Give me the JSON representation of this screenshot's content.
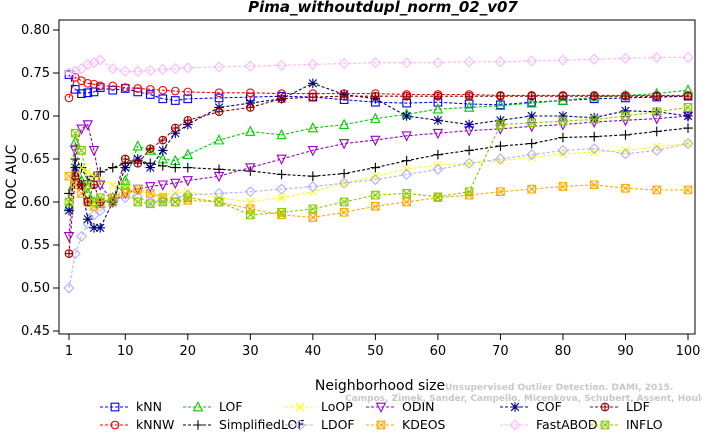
{
  "chart_data": {
    "type": "line",
    "title": "Pima_withoutdupl_norm_02_v07",
    "xlabel": "Neighborhood size",
    "ylabel": "ROC AUC",
    "xlim": [
      1,
      100
    ],
    "ylim": [
      0.45,
      0.8
    ],
    "xticks": [
      1,
      10,
      20,
      30,
      40,
      50,
      60,
      70,
      80,
      90,
      100
    ],
    "xtick_labels": [
      "1",
      "10",
      "20",
      "30",
      "40",
      "50",
      "60",
      "70",
      "80",
      "90",
      "100"
    ],
    "yticks": [
      0.45,
      0.5,
      0.55,
      0.6,
      0.65,
      0.7,
      0.75,
      0.8
    ],
    "ytick_labels": [
      "0.45",
      "0.50",
      "0.55",
      "0.60",
      "0.65",
      "0.70",
      "0.75",
      "0.80"
    ],
    "grid": false,
    "legend_position": "bottom",
    "watermark": {
      "line1": "Unsupervised Outlier Detection. DAMI, 2015.",
      "line2": "Campos, Zimek, Sander, Campello, Micenkova, Schubert, Assent, Houle"
    },
    "series": [
      {
        "name": "kNN",
        "color": "#0000ff",
        "marker": "square",
        "x": [
          1,
          2,
          3,
          4,
          5,
          6,
          8,
          10,
          12,
          14,
          16,
          18,
          20,
          25,
          30,
          35,
          40,
          45,
          50,
          55,
          60,
          65,
          70,
          75,
          80,
          85,
          90,
          95,
          100
        ],
        "values": [
          0.748,
          0.731,
          0.726,
          0.727,
          0.728,
          0.733,
          0.73,
          0.732,
          0.728,
          0.725,
          0.72,
          0.718,
          0.72,
          0.721,
          0.722,
          0.723,
          0.722,
          0.719,
          0.716,
          0.715,
          0.716,
          0.714,
          0.713,
          0.716,
          0.718,
          0.72,
          0.721,
          0.722,
          0.723
        ]
      },
      {
        "name": "kNNW",
        "color": "#ff0000",
        "marker": "circle",
        "x": [
          1,
          2,
          3,
          4,
          5,
          6,
          8,
          10,
          12,
          14,
          16,
          18,
          20,
          25,
          30,
          35,
          40,
          45,
          50,
          55,
          60,
          65,
          70,
          75,
          80,
          85,
          90,
          95,
          100
        ],
        "values": [
          0.721,
          0.745,
          0.741,
          0.738,
          0.737,
          0.735,
          0.735,
          0.733,
          0.732,
          0.731,
          0.73,
          0.729,
          0.728,
          0.727,
          0.727,
          0.726,
          0.726,
          0.726,
          0.726,
          0.725,
          0.725,
          0.725,
          0.724,
          0.724,
          0.724,
          0.724,
          0.724,
          0.724,
          0.724
        ]
      },
      {
        "name": "LOF",
        "color": "#00cc00",
        "marker": "triangle",
        "x": [
          1,
          2,
          3,
          4,
          5,
          6,
          8,
          10,
          12,
          14,
          16,
          18,
          20,
          25,
          30,
          35,
          40,
          45,
          50,
          55,
          60,
          65,
          70,
          75,
          80,
          85,
          90,
          95,
          100
        ],
        "values": [
          0.595,
          0.67,
          0.625,
          0.61,
          0.6,
          0.598,
          0.605,
          0.625,
          0.665,
          0.66,
          0.65,
          0.648,
          0.655,
          0.672,
          0.682,
          0.678,
          0.686,
          0.69,
          0.697,
          0.702,
          0.708,
          0.71,
          0.712,
          0.715,
          0.718,
          0.722,
          0.724,
          0.726,
          0.73
        ]
      },
      {
        "name": "SimplifiedLOF",
        "color": "#000000",
        "marker": "plus",
        "x": [
          1,
          2,
          3,
          4,
          5,
          6,
          8,
          10,
          12,
          14,
          16,
          18,
          20,
          25,
          30,
          35,
          40,
          45,
          50,
          55,
          60,
          65,
          70,
          75,
          80,
          85,
          90,
          95,
          100
        ],
        "values": [
          0.61,
          0.65,
          0.64,
          0.625,
          0.63,
          0.635,
          0.64,
          0.645,
          0.648,
          0.645,
          0.642,
          0.64,
          0.64,
          0.638,
          0.636,
          0.632,
          0.63,
          0.633,
          0.64,
          0.648,
          0.655,
          0.66,
          0.665,
          0.668,
          0.675,
          0.676,
          0.678,
          0.682,
          0.686
        ]
      },
      {
        "name": "LoOP",
        "color": "#ffff00",
        "marker": "cross",
        "x": [
          1,
          2,
          3,
          4,
          5,
          6,
          8,
          10,
          12,
          14,
          16,
          18,
          20,
          25,
          30,
          35,
          40,
          45,
          50,
          55,
          60,
          65,
          70,
          75,
          80,
          85,
          90,
          95,
          100
        ],
        "values": [
          0.6,
          0.63,
          0.64,
          0.635,
          0.63,
          0.625,
          0.62,
          0.615,
          0.612,
          0.61,
          0.608,
          0.61,
          0.612,
          0.605,
          0.6,
          0.605,
          0.612,
          0.622,
          0.63,
          0.638,
          0.643,
          0.645,
          0.648,
          0.652,
          0.656,
          0.658,
          0.66,
          0.664,
          0.668
        ]
      },
      {
        "name": "LDOF",
        "color": "#b0b0ff",
        "marker": "diamond",
        "x": [
          1,
          2,
          3,
          4,
          5,
          6,
          8,
          10,
          12,
          14,
          16,
          18,
          20,
          25,
          30,
          35,
          40,
          45,
          50,
          55,
          60,
          65,
          70,
          75,
          80,
          85,
          90,
          95,
          100
        ],
        "values": [
          0.5,
          0.54,
          0.56,
          0.575,
          0.585,
          0.59,
          0.6,
          0.605,
          0.605,
          0.6,
          0.602,
          0.605,
          0.608,
          0.61,
          0.612,
          0.615,
          0.618,
          0.622,
          0.626,
          0.632,
          0.638,
          0.645,
          0.65,
          0.655,
          0.66,
          0.662,
          0.656,
          0.66,
          0.668
        ]
      },
      {
        "name": "ODIN",
        "color": "#9900cc",
        "marker": "triangle-down",
        "x": [
          1,
          2,
          3,
          4,
          5,
          6,
          8,
          10,
          12,
          14,
          16,
          18,
          20,
          25,
          30,
          35,
          40,
          45,
          50,
          55,
          60,
          65,
          70,
          75,
          80,
          85,
          90,
          95,
          100
        ],
        "values": [
          0.56,
          0.66,
          0.685,
          0.69,
          0.66,
          0.62,
          0.6,
          0.61,
          0.615,
          0.618,
          0.62,
          0.622,
          0.625,
          0.63,
          0.64,
          0.65,
          0.66,
          0.668,
          0.672,
          0.677,
          0.68,
          0.683,
          0.685,
          0.688,
          0.69,
          0.693,
          0.695,
          0.697,
          0.7
        ]
      },
      {
        "name": "KDEOS",
        "color": "#ffaa00",
        "marker": "square-x",
        "x": [
          1,
          2,
          3,
          4,
          5,
          6,
          8,
          10,
          12,
          14,
          16,
          18,
          20,
          25,
          30,
          35,
          40,
          45,
          50,
          55,
          60,
          65,
          70,
          75,
          80,
          85,
          90,
          95,
          100
        ],
        "values": [
          0.63,
          0.62,
          0.61,
          0.6,
          0.595,
          0.6,
          0.605,
          0.61,
          0.615,
          0.61,
          0.605,
          0.6,
          0.602,
          0.6,
          0.592,
          0.585,
          0.582,
          0.588,
          0.595,
          0.6,
          0.605,
          0.608,
          0.612,
          0.615,
          0.618,
          0.62,
          0.616,
          0.614,
          0.614
        ]
      },
      {
        "name": "COF",
        "color": "#000080",
        "marker": "star",
        "x": [
          1,
          2,
          3,
          4,
          5,
          6,
          8,
          10,
          12,
          14,
          16,
          18,
          20,
          25,
          30,
          35,
          40,
          45,
          50,
          55,
          60,
          65,
          70,
          75,
          80,
          85,
          90,
          95,
          100
        ],
        "values": [
          0.59,
          0.64,
          0.62,
          0.58,
          0.57,
          0.57,
          0.6,
          0.64,
          0.65,
          0.64,
          0.66,
          0.68,
          0.69,
          0.71,
          0.715,
          0.72,
          0.738,
          0.725,
          0.72,
          0.7,
          0.695,
          0.69,
          0.695,
          0.7,
          0.7,
          0.698,
          0.706,
          0.705,
          0.7
        ]
      },
      {
        "name": "FastABOD",
        "color": "#ffb6ff",
        "marker": "diamond",
        "x": [
          1,
          2,
          3,
          4,
          5,
          6,
          8,
          10,
          12,
          14,
          16,
          18,
          20,
          25,
          30,
          35,
          40,
          45,
          50,
          55,
          60,
          65,
          70,
          75,
          80,
          85,
          90,
          95,
          100
        ],
        "values": [
          0.75,
          0.752,
          0.755,
          0.76,
          0.762,
          0.765,
          0.755,
          0.752,
          0.752,
          0.753,
          0.754,
          0.755,
          0.756,
          0.757,
          0.758,
          0.759,
          0.76,
          0.761,
          0.762,
          0.762,
          0.762,
          0.763,
          0.763,
          0.764,
          0.765,
          0.766,
          0.767,
          0.768,
          0.768
        ]
      },
      {
        "name": "LDF",
        "color": "#990000",
        "marker": "circle-plus",
        "x": [
          1,
          2,
          3,
          4,
          5,
          6,
          8,
          10,
          12,
          14,
          16,
          18,
          20,
          25,
          30,
          35,
          40,
          45,
          50,
          55,
          60,
          65,
          70,
          75,
          80,
          85,
          90,
          95,
          100
        ],
        "values": [
          0.54,
          0.63,
          0.62,
          0.6,
          0.62,
          0.6,
          0.6,
          0.65,
          0.645,
          0.662,
          0.672,
          0.686,
          0.695,
          0.705,
          0.71,
          0.72,
          0.722,
          0.723,
          0.723,
          0.723,
          0.723,
          0.723,
          0.723,
          0.723,
          0.723,
          0.723,
          0.723,
          0.723,
          0.723
        ]
      },
      {
        "name": "INFLO",
        "color": "#88cc00",
        "marker": "square-x",
        "x": [
          1,
          2,
          3,
          4,
          5,
          6,
          8,
          10,
          12,
          14,
          16,
          18,
          20,
          25,
          30,
          35,
          40,
          45,
          50,
          55,
          60,
          65,
          70,
          75,
          80,
          85,
          90,
          95,
          100
        ],
        "values": [
          0.6,
          0.68,
          0.66,
          0.62,
          0.6,
          0.605,
          0.6,
          0.62,
          0.6,
          0.598,
          0.6,
          0.6,
          0.605,
          0.6,
          0.585,
          0.588,
          0.592,
          0.6,
          0.608,
          0.61,
          0.606,
          0.612,
          0.69,
          0.692,
          0.694,
          0.696,
          0.7,
          0.705,
          0.71
        ]
      }
    ]
  }
}
